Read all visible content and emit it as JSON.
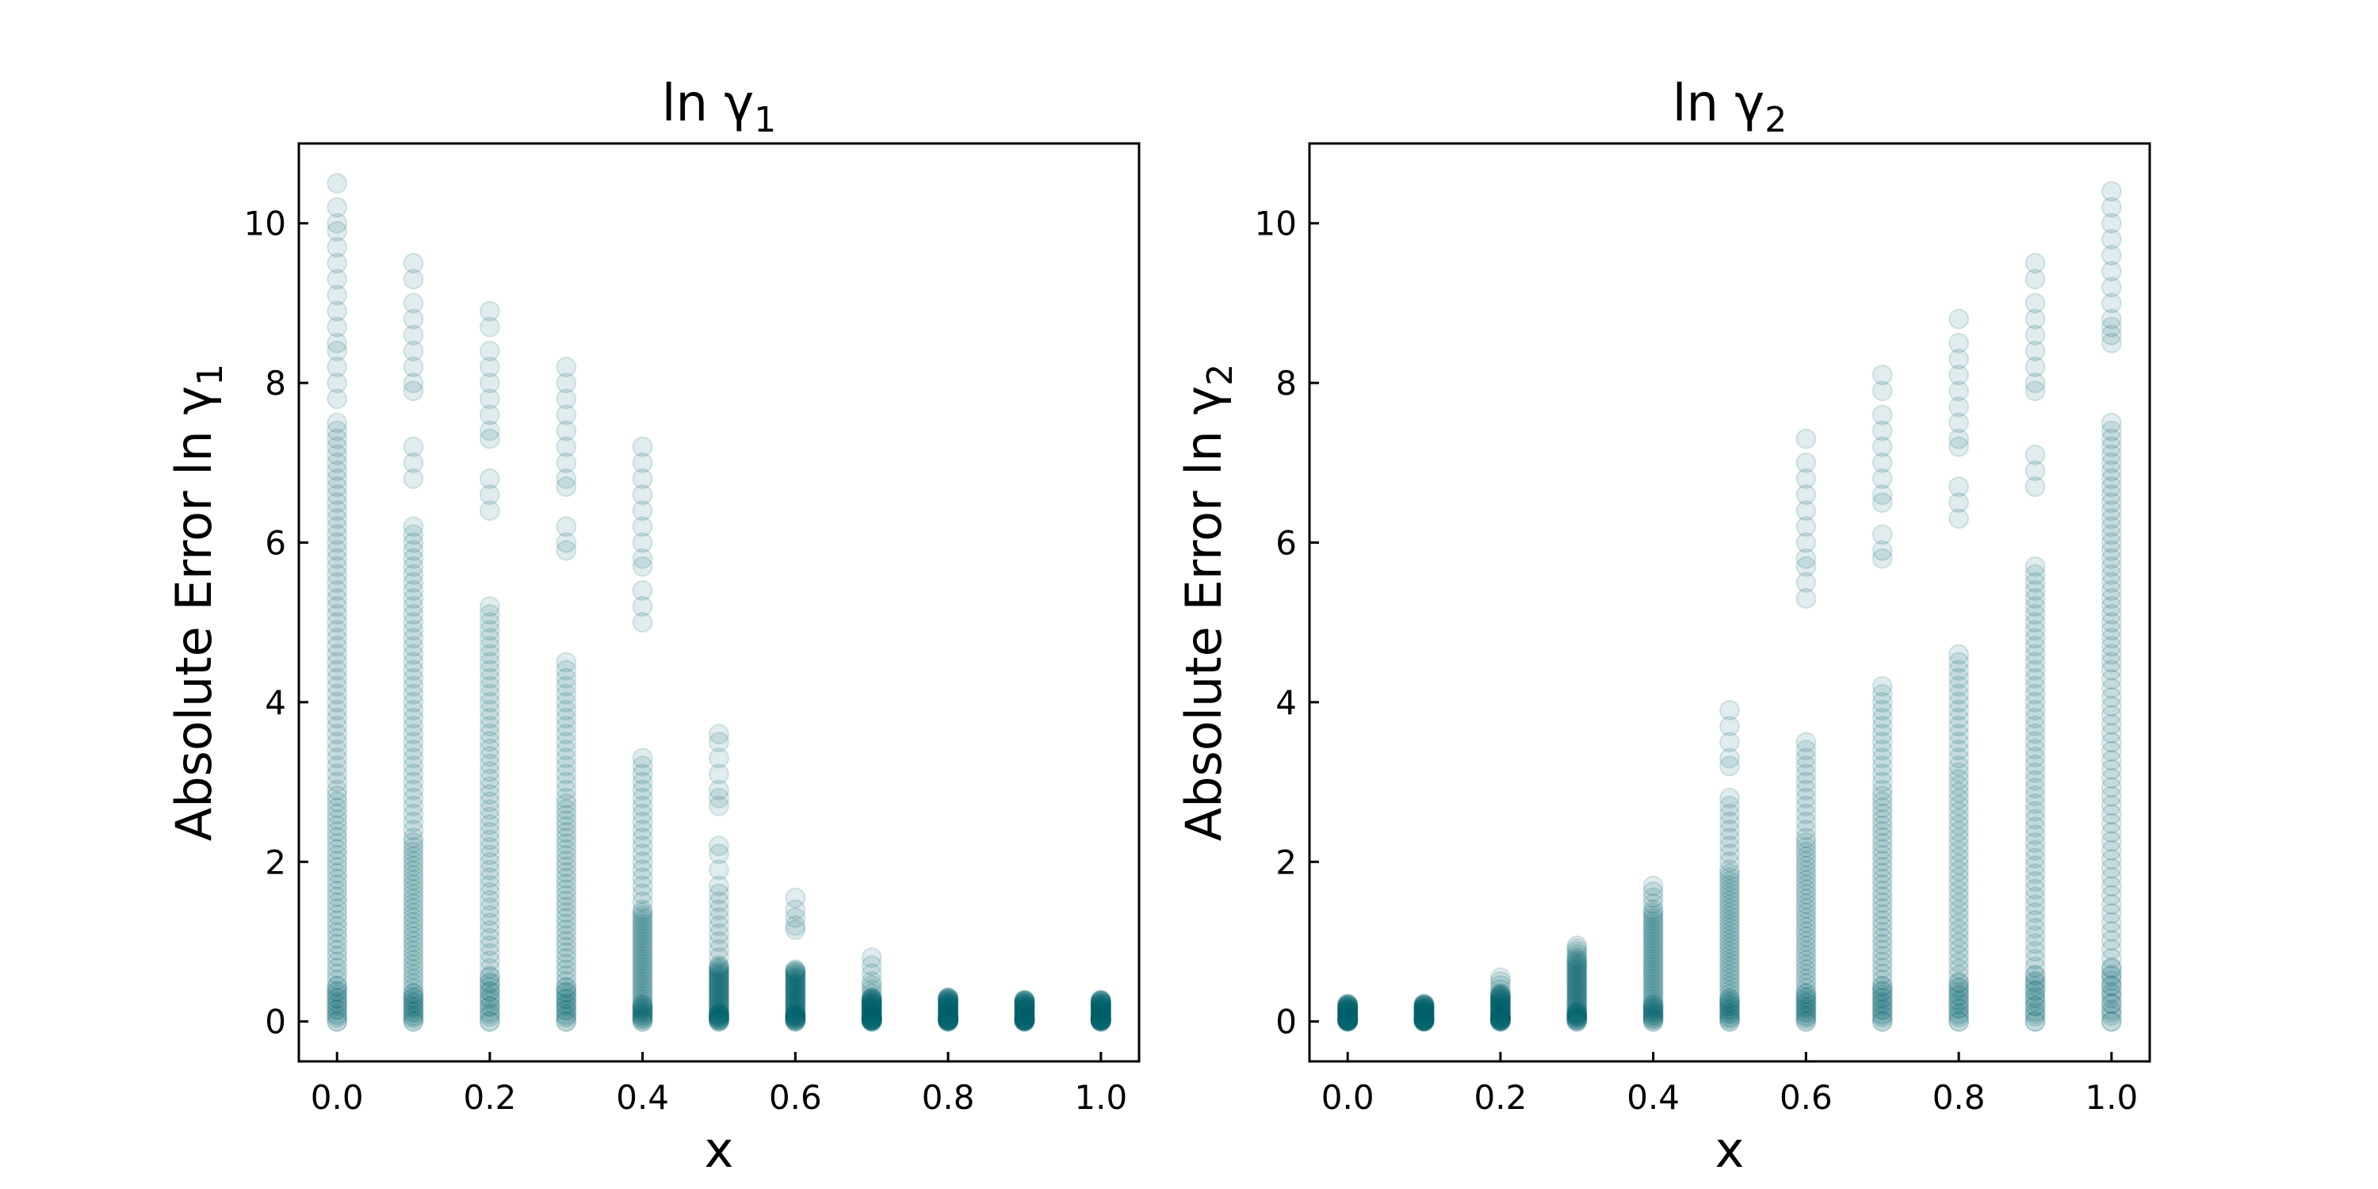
{
  "colors": {
    "marker": "#045f6b",
    "axes": "#000000",
    "background": "#ffffff"
  },
  "chart_data": [
    {
      "type": "scatter",
      "title": "ln γ₁",
      "title_main": "ln γ",
      "title_sub": "1",
      "xlabel": "x",
      "ylabel": "Absolute Error ln γ₁",
      "ylabel_main": "Absolute Error ln γ",
      "ylabel_sub": "1",
      "xlim": [
        -0.05,
        1.05
      ],
      "ylim": [
        -0.5,
        11.0
      ],
      "xticks": [
        0.0,
        0.2,
        0.4,
        0.6,
        0.8,
        1.0
      ],
      "xtick_labels": [
        "0.0",
        "0.2",
        "0.4",
        "0.6",
        "0.8",
        "1.0"
      ],
      "yticks": [
        0,
        2,
        4,
        6,
        8,
        10
      ],
      "ytick_labels": [
        "0",
        "2",
        "4",
        "6",
        "8",
        "10"
      ],
      "grid": false,
      "marker_opacity": 0.12,
      "columns": [
        {
          "x": 0.0,
          "dense_max": 2.9,
          "sparse_max": 7.5,
          "outliers": [
            10.5,
            10.2,
            10.0,
            9.9,
            9.7,
            9.5,
            9.3,
            9.1,
            8.9,
            8.7,
            8.5,
            8.4,
            8.2,
            8.0,
            7.8
          ]
        },
        {
          "x": 0.1,
          "dense_max": 2.3,
          "sparse_max": 6.2,
          "outliers": [
            9.5,
            9.3,
            9.0,
            8.8,
            8.6,
            8.4,
            8.2,
            8.0,
            7.9,
            7.2,
            7.0,
            6.8
          ]
        },
        {
          "x": 0.2,
          "dense_max": 3.7,
          "sparse_max": 5.2,
          "outliers": [
            8.9,
            8.7,
            8.4,
            8.2,
            8.0,
            7.8,
            7.6,
            7.4,
            7.3,
            6.8,
            6.6,
            6.4
          ]
        },
        {
          "x": 0.3,
          "dense_max": 2.8,
          "sparse_max": 4.5,
          "outliers": [
            8.2,
            8.0,
            7.8,
            7.6,
            7.4,
            7.2,
            7.0,
            6.8,
            6.7,
            6.2,
            6.0,
            5.9
          ]
        },
        {
          "x": 0.4,
          "dense_max": 1.4,
          "sparse_max": 3.3,
          "outliers": [
            7.2,
            7.0,
            6.8,
            6.6,
            6.4,
            6.2,
            6.0,
            5.8,
            5.7,
            5.4,
            5.2,
            5.0
          ]
        },
        {
          "x": 0.5,
          "dense_max": 0.7,
          "sparse_max": 1.5,
          "outliers": [
            3.6,
            3.5,
            3.3,
            3.1,
            2.9,
            2.8,
            2.7,
            2.2,
            2.1,
            1.9,
            1.7,
            1.6
          ]
        },
        {
          "x": 0.6,
          "dense_max": 0.6,
          "sparse_max": 0.65,
          "outliers": [
            1.55,
            1.4,
            1.3,
            1.2,
            1.15
          ]
        },
        {
          "x": 0.7,
          "dense_max": 0.3,
          "sparse_max": 0.5,
          "outliers": [
            0.8,
            0.7,
            0.6
          ]
        },
        {
          "x": 0.8,
          "dense_max": 0.28,
          "sparse_max": 0.3,
          "outliers": []
        },
        {
          "x": 0.9,
          "dense_max": 0.25,
          "sparse_max": 0.27,
          "outliers": []
        },
        {
          "x": 1.0,
          "dense_max": 0.25,
          "sparse_max": 0.27,
          "outliers": []
        }
      ]
    },
    {
      "type": "scatter",
      "title": "ln γ₂",
      "title_main": "ln γ",
      "title_sub": "2",
      "xlabel": "x",
      "ylabel": "Absolute Error ln γ₂",
      "ylabel_main": "Absolute Error ln γ",
      "ylabel_sub": "2",
      "xlim": [
        -0.05,
        1.05
      ],
      "ylim": [
        -0.5,
        11.0
      ],
      "xticks": [
        0.0,
        0.2,
        0.4,
        0.6,
        0.8,
        1.0
      ],
      "xtick_labels": [
        "0.0",
        "0.2",
        "0.4",
        "0.6",
        "0.8",
        "1.0"
      ],
      "yticks": [
        0,
        2,
        4,
        6,
        8,
        10
      ],
      "ytick_labels": [
        "0",
        "2",
        "4",
        "6",
        "8",
        "10"
      ],
      "grid": false,
      "marker_opacity": 0.12,
      "columns": [
        {
          "x": 0.0,
          "dense_max": 0.2,
          "sparse_max": 0.22,
          "outliers": []
        },
        {
          "x": 0.1,
          "dense_max": 0.2,
          "sparse_max": 0.22,
          "outliers": []
        },
        {
          "x": 0.2,
          "dense_max": 0.35,
          "sparse_max": 0.55,
          "outliers": []
        },
        {
          "x": 0.3,
          "dense_max": 0.8,
          "sparse_max": 0.95,
          "outliers": []
        },
        {
          "x": 0.4,
          "dense_max": 1.4,
          "sparse_max": 1.7,
          "outliers": []
        },
        {
          "x": 0.5,
          "dense_max": 1.9,
          "sparse_max": 2.8,
          "outliers": [
            3.9,
            3.7,
            3.5,
            3.3,
            3.2
          ]
        },
        {
          "x": 0.6,
          "dense_max": 2.3,
          "sparse_max": 3.5,
          "outliers": [
            7.3,
            7.0,
            6.8,
            6.6,
            6.4,
            6.2,
            6.0,
            5.8,
            5.7,
            5.5,
            5.3
          ]
        },
        {
          "x": 0.7,
          "dense_max": 2.9,
          "sparse_max": 4.2,
          "outliers": [
            8.1,
            7.9,
            7.6,
            7.4,
            7.2,
            7.0,
            6.8,
            6.6,
            6.5,
            6.1,
            5.9,
            5.8
          ]
        },
        {
          "x": 0.8,
          "dense_max": 3.2,
          "sparse_max": 4.6,
          "outliers": [
            8.8,
            8.5,
            8.3,
            8.1,
            7.9,
            7.7,
            7.5,
            7.3,
            7.2,
            6.7,
            6.5,
            6.3
          ]
        },
        {
          "x": 0.9,
          "dense_max": 3.8,
          "sparse_max": 5.7,
          "outliers": [
            9.5,
            9.3,
            9.0,
            8.8,
            8.6,
            8.4,
            8.2,
            8.0,
            7.9,
            7.1,
            6.9,
            6.7
          ]
        },
        {
          "x": 1.0,
          "dense_max": 4.4,
          "sparse_max": 7.5,
          "outliers": [
            10.4,
            10.2,
            10.0,
            9.8,
            9.6,
            9.4,
            9.2,
            9.0,
            8.8,
            8.7,
            8.6,
            8.5
          ]
        }
      ]
    }
  ]
}
